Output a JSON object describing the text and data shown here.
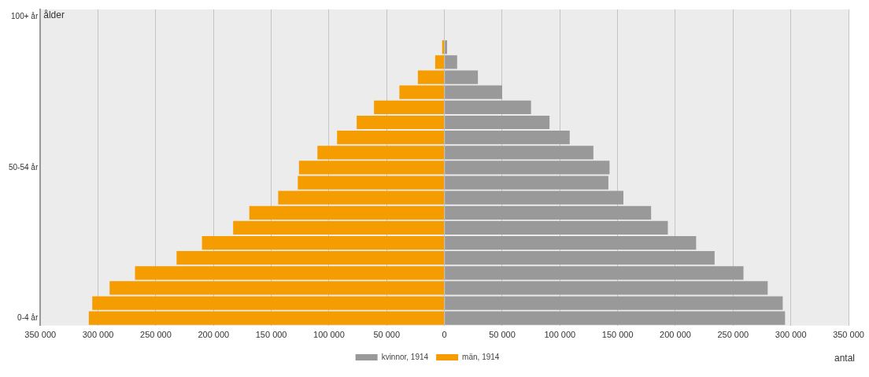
{
  "chart_data": {
    "type": "bar",
    "orientation": "horizontal",
    "stacked": true,
    "categories": [
      "100+ år",
      null,
      null,
      null,
      null,
      null,
      null,
      null,
      null,
      null,
      "50-54 år",
      null,
      null,
      null,
      null,
      null,
      null,
      null,
      null,
      null,
      "0-4 år"
    ],
    "series": [
      {
        "name": "kvinnor, 1914",
        "color": "#999999",
        "values": [
          null,
          null,
          2300,
          11000,
          29000,
          50000,
          75000,
          91000,
          108500,
          129000,
          143000,
          142000,
          155000,
          179000,
          193500,
          218000,
          234000,
          259000,
          280000,
          293000,
          295000
        ]
      },
      {
        "name": "män, 1914",
        "color": "#f59c00",
        "values": [
          null,
          null,
          -2000,
          -8000,
          -23000,
          -39000,
          -61000,
          -76000,
          -93000,
          -110000,
          -126000,
          -127000,
          -144000,
          -169000,
          -183000,
          -210000,
          -232000,
          -268000,
          -290000,
          -305000,
          -308000
        ]
      }
    ],
    "xlim": [
      -350000,
      350000
    ],
    "xticks": [
      {
        "value": -350000,
        "label": "350 000"
      },
      {
        "value": -300000,
        "label": "300 000"
      },
      {
        "value": -250000,
        "label": "250 000"
      },
      {
        "value": -200000,
        "label": "200 000"
      },
      {
        "value": -150000,
        "label": "150 000"
      },
      {
        "value": -100000,
        "label": "100 000"
      },
      {
        "value": -50000,
        "label": "50 000"
      },
      0,
      {
        "value": 50000,
        "label": "50 000"
      },
      {
        "value": 100000,
        "label": "100 000"
      },
      {
        "value": 150000,
        "label": "150 000"
      },
      {
        "value": 200000,
        "label": "200 000"
      },
      {
        "value": 250000,
        "label": "250 000"
      },
      {
        "value": 300000,
        "label": "300 000"
      },
      {
        "value": 350000,
        "label": "350 000"
      }
    ],
    "xlabel": "antal",
    "ylabel": "ålder",
    "grid": "x",
    "legend": "bottom"
  }
}
